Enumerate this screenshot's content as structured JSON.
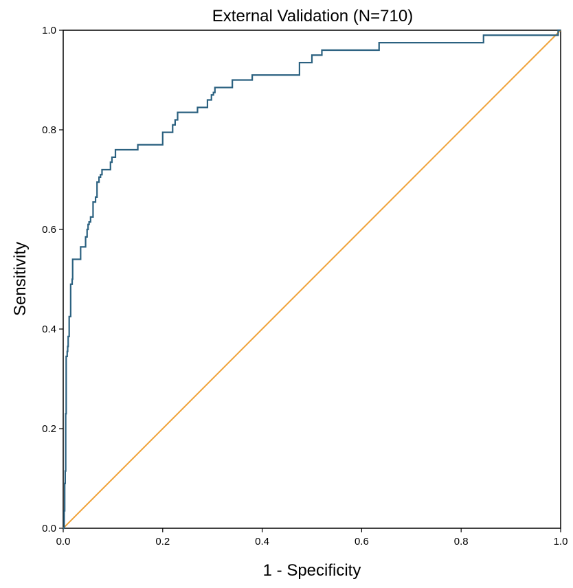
{
  "chart_data": {
    "type": "line",
    "title": "External Validation (N=710)",
    "xlabel": "1 - Specificity",
    "ylabel": "Sensitivity",
    "xlim": [
      0,
      1
    ],
    "ylim": [
      0,
      1
    ],
    "xticks": [
      "0.0",
      "0.2",
      "0.4",
      "0.6",
      "0.8",
      "1.0"
    ],
    "yticks": [
      "0.0",
      "0.2",
      "0.4",
      "0.6",
      "0.8",
      "1.0"
    ],
    "grid": false,
    "series": [
      {
        "color": "#2b6180",
        "step": true,
        "x": [
          0,
          0.002,
          0.003,
          0.004,
          0.005,
          0.006,
          0.008,
          0.009,
          0.01,
          0.012,
          0.013,
          0.014,
          0.015,
          0.018,
          0.019,
          0.022,
          0.024,
          0.035,
          0.045,
          0.048,
          0.05,
          0.052,
          0.055,
          0.06,
          0.065,
          0.068,
          0.072,
          0.075,
          0.078,
          0.082,
          0.085,
          0.095,
          0.098,
          0.102,
          0.105,
          0.15,
          0.2,
          0.21,
          0.22,
          0.225,
          0.23,
          0.27,
          0.29,
          0.298,
          0.302,
          0.305,
          0.34,
          0.38,
          0.475,
          0.5,
          0.52,
          0.635,
          0.845,
          0.995,
          1.0
        ],
        "y": [
          0,
          0.035,
          0.09,
          0.115,
          0.23,
          0.345,
          0.355,
          0.365,
          0.385,
          0.425,
          0.425,
          0.425,
          0.49,
          0.5,
          0.54,
          0.54,
          0.54,
          0.565,
          0.585,
          0.6,
          0.61,
          0.615,
          0.625,
          0.655,
          0.665,
          0.695,
          0.705,
          0.71,
          0.72,
          0.72,
          0.72,
          0.735,
          0.745,
          0.745,
          0.76,
          0.77,
          0.795,
          0.795,
          0.81,
          0.82,
          0.835,
          0.845,
          0.86,
          0.87,
          0.875,
          0.885,
          0.9,
          0.91,
          0.935,
          0.95,
          0.96,
          0.975,
          0.99,
          1.0,
          1.0
        ]
      },
      {
        "color": "#f0a33a",
        "step": false,
        "x": [
          0,
          1
        ],
        "y": [
          0,
          1
        ]
      }
    ]
  }
}
